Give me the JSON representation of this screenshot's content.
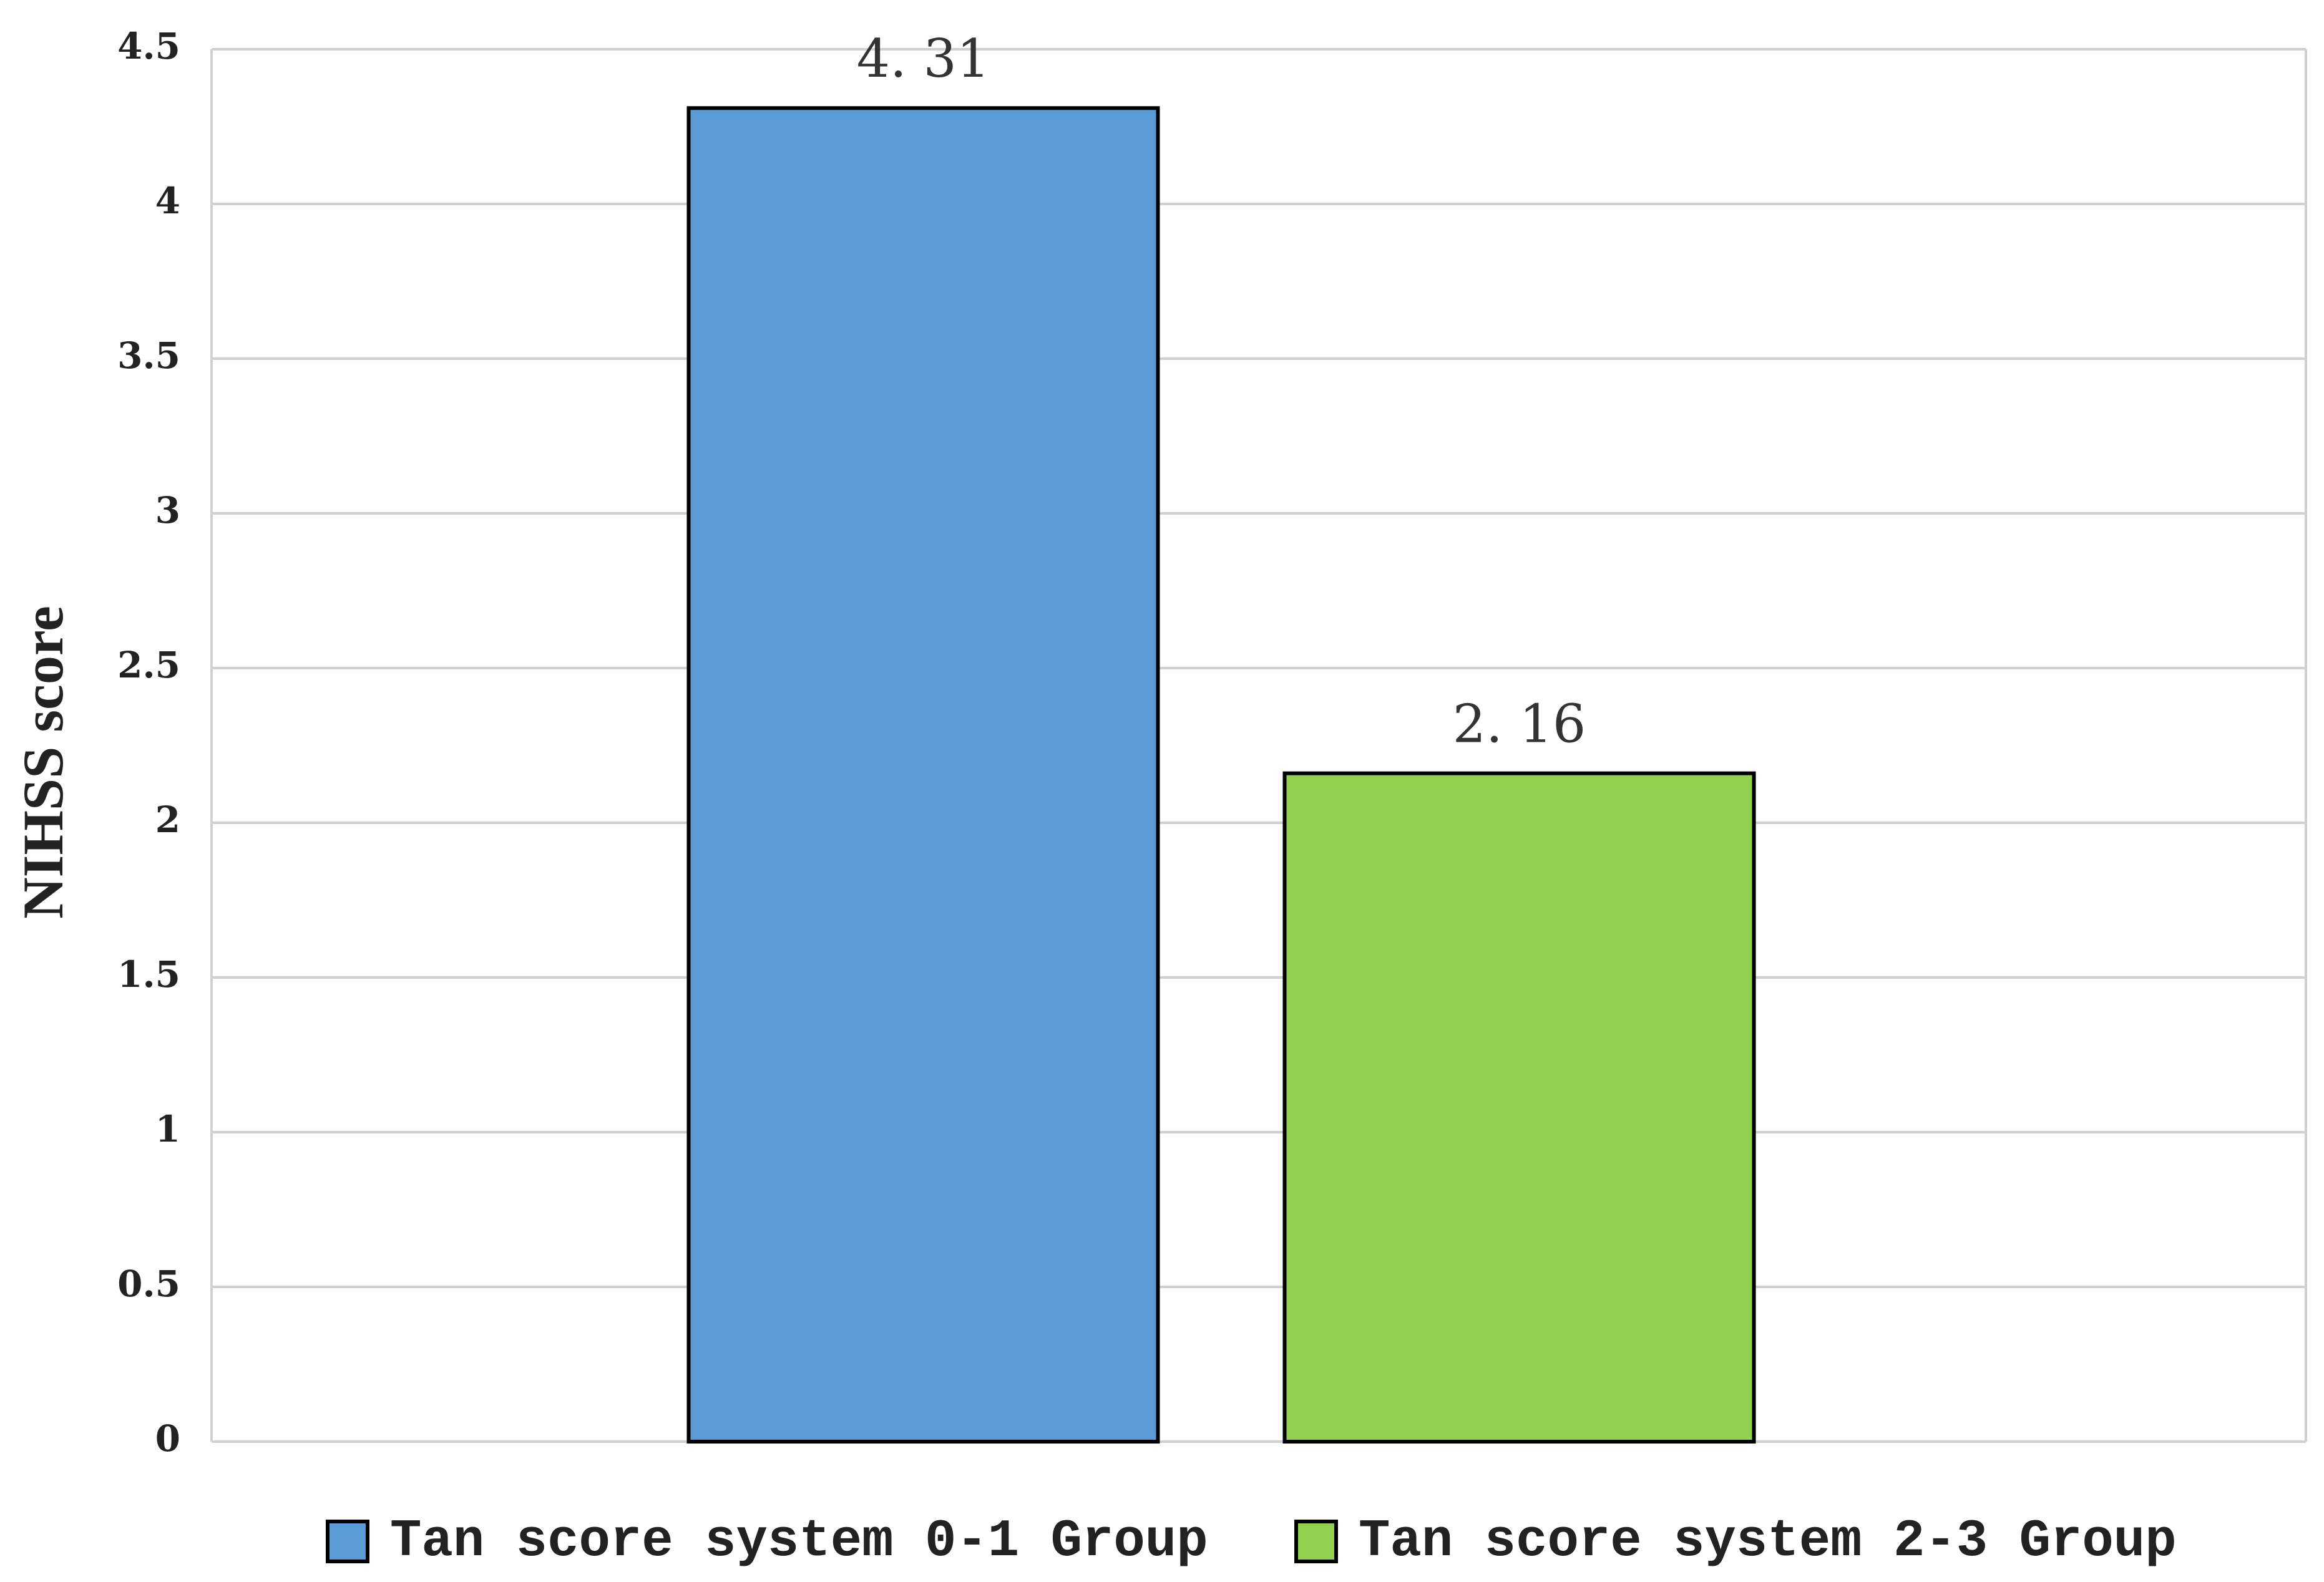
{
  "chart_data": {
    "type": "bar",
    "y_label": "NIHSS score",
    "categories": [
      null
    ],
    "series": [
      {
        "name": "Tan score system 0-1 Group",
        "color": "#5b9bd5",
        "values": [
          4.31
        ],
        "value_labels": [
          "4. 31"
        ]
      },
      {
        "name": "Tan score system 2-3 Group",
        "color": "#92d050",
        "values": [
          2.16
        ],
        "value_labels": [
          "2. 16"
        ]
      }
    ],
    "ylim": [
      0,
      4.5
    ],
    "yticks": [
      0,
      0.5,
      1,
      1.5,
      2,
      2.5,
      3,
      3.5,
      4,
      4.5
    ],
    "grid": true,
    "legend": "bottom"
  }
}
